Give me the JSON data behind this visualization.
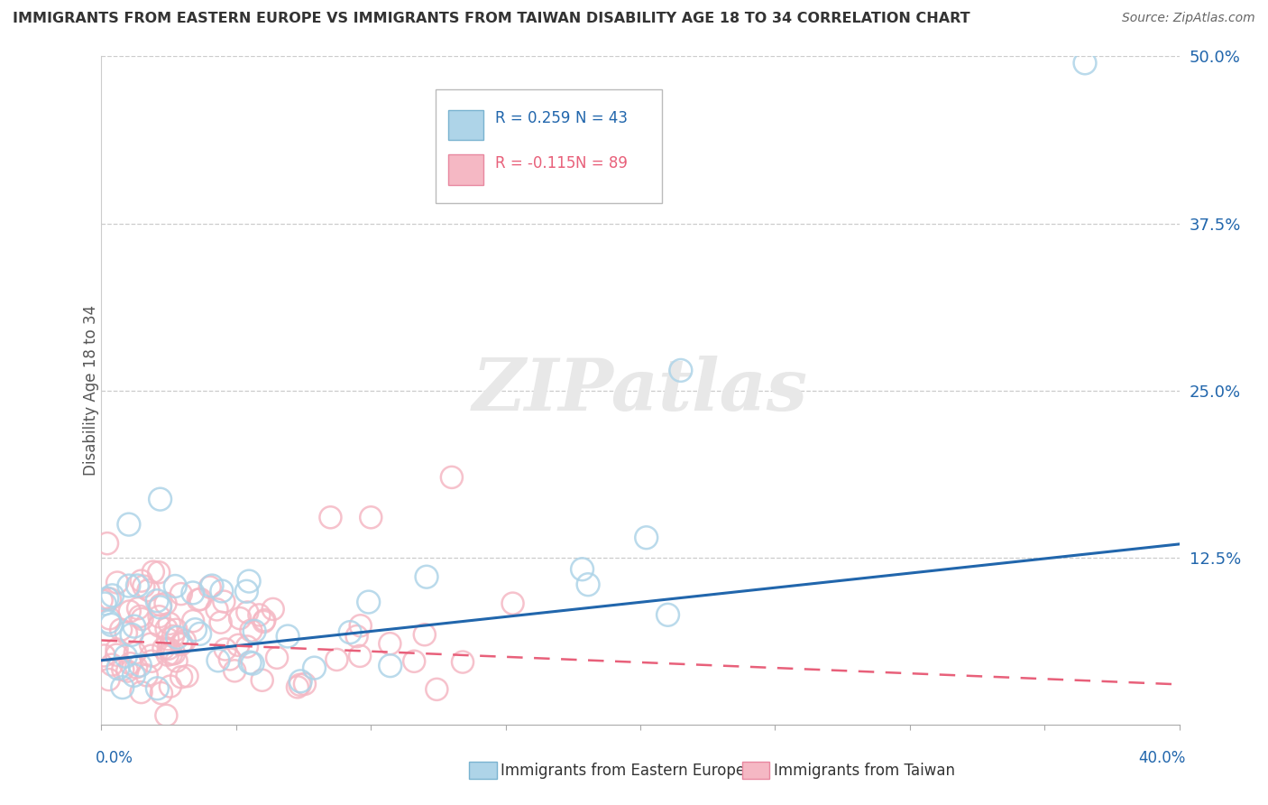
{
  "title": "IMMIGRANTS FROM EASTERN EUROPE VS IMMIGRANTS FROM TAIWAN DISABILITY AGE 18 TO 34 CORRELATION CHART",
  "source": "Source: ZipAtlas.com",
  "ylabel": "Disability Age 18 to 34",
  "right_yticks": [
    0.0,
    0.125,
    0.25,
    0.375,
    0.5
  ],
  "right_yticklabels": [
    "",
    "12.5%",
    "25.0%",
    "37.5%",
    "50.0%"
  ],
  "legend_blue_r": "R = 0.259",
  "legend_blue_n": "N = 43",
  "legend_pink_r": "R = -0.115",
  "legend_pink_n": "N = 89",
  "legend_label_blue": "Immigrants from Eastern Europe",
  "legend_label_pink": "Immigrants from Taiwan",
  "blue_color": "#aed4e8",
  "pink_color": "#f5b8c4",
  "blue_edge_color": "#7ab3d0",
  "pink_edge_color": "#e888a0",
  "blue_line_color": "#2166ac",
  "pink_line_color": "#e8607a",
  "axis_color": "#2166ac",
  "background_color": "#ffffff",
  "watermark": "ZIPatlas",
  "xlim": [
    0.0,
    0.4
  ],
  "ylim": [
    0.0,
    0.5
  ],
  "blue_R": 0.259,
  "blue_N": 43,
  "pink_R": -0.115,
  "pink_N": 89,
  "blue_trend_y0": 0.048,
  "blue_trend_y1": 0.135,
  "pink_trend_y0": 0.063,
  "pink_trend_y1": 0.03
}
